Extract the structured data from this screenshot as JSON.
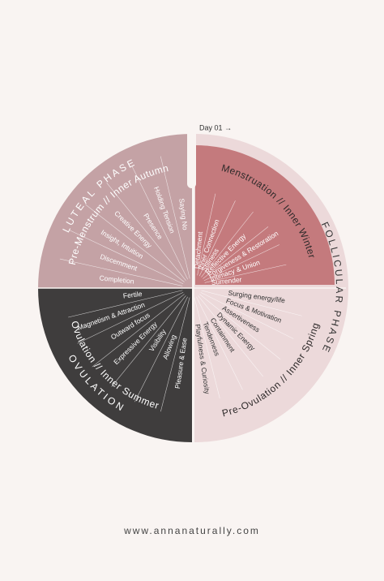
{
  "day_marker": "Day 01 →",
  "segments": [
    {
      "phase": "LUTEAL PHASE",
      "season": "Pre-Menstrum // Inner Autumn",
      "items": [
        "Saying No",
        "Holding Tension",
        "Presence",
        "Creative Energy",
        "Insight, Intuition",
        "Discernment",
        "Completion"
      ]
    },
    {
      "season": "Menstruation // Inner Winter",
      "items": [
        "Detachment",
        "Inner Connection",
        "Stillness",
        "Reflective Energy",
        "Forgiveness & Restoration",
        "Intimacy & Union",
        "Surrender"
      ]
    },
    {
      "phase": "FOLLICULAR PHASE",
      "season": "Pre-Ovulation // Inner Spring",
      "items": [
        "Surging energy/life",
        "Focus & Motivation",
        "Assertiveness",
        "Dynamic Energy",
        "Containment",
        "Tenderness",
        "Playfulness & Curiosity"
      ]
    },
    {
      "phase": "OVULATION",
      "season": "Ovulation // Inner Summer",
      "items": [
        "Fertile",
        "Magnetism & Attraction",
        "Outward focus",
        "Expressive Energy",
        "Visibility",
        "Allowing",
        "Pleasure & Ease"
      ]
    }
  ],
  "footer": "www.annanaturally.com"
}
